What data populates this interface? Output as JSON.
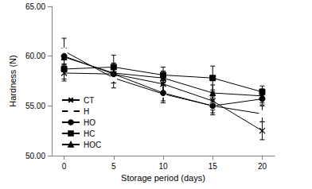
{
  "chart_data": {
    "type": "line",
    "x_label": "Storage period (days)",
    "y_label": "Hardness (N)",
    "xlim": [
      -1.25,
      21.25
    ],
    "xticks": [
      0,
      5,
      10,
      15,
      20
    ],
    "ylim": [
      50,
      65
    ],
    "yticks": [
      {
        "value": 50,
        "label": "50.00"
      },
      {
        "value": 55,
        "label": "55.00"
      },
      {
        "value": 60,
        "label": "60.00"
      },
      {
        "value": 65,
        "label": "65.00"
      }
    ],
    "grid": false,
    "legend": "lower left",
    "series": [
      {
        "name": "CT",
        "color": "#000000",
        "marker": "x",
        "line_style": "solid",
        "x": [
          0,
          5,
          10,
          15,
          20
        ],
        "values": [
          58.3,
          58.2,
          57.2,
          55.5,
          52.5
        ],
        "errors": [
          0.8,
          0.9,
          0.8,
          0.9,
          0.9
        ]
      },
      {
        "name": "H",
        "color": "#000000",
        "marker": "circle_open",
        "line_style": "solid",
        "x": [
          0,
          5,
          10,
          15,
          20
        ],
        "values": [
          60.5,
          57.8,
          56.2,
          55.0,
          54.2
        ],
        "errors": [
          1.3,
          1.0,
          0.9,
          0.9,
          0.8
        ]
      },
      {
        "name": "HO",
        "color": "#000000",
        "marker": "circle",
        "line_style": "solid",
        "x": [
          0,
          5,
          10,
          15,
          20
        ],
        "values": [
          60.0,
          58.2,
          56.3,
          55.0,
          55.7
        ],
        "errors": [
          0.8,
          0.9,
          0.8,
          0.7,
          0.6
        ]
      },
      {
        "name": "HC",
        "color": "#000000",
        "marker": "square",
        "line_style": "solid",
        "x": [
          0,
          5,
          10,
          15,
          20
        ],
        "values": [
          58.7,
          58.9,
          58.1,
          57.8,
          56.4
        ],
        "errors": [
          1.0,
          1.2,
          0.8,
          1.2,
          0.6
        ]
      },
      {
        "name": "HOC",
        "color": "#000000",
        "marker": "triangle",
        "line_style": "solid",
        "x": [
          0,
          5,
          10,
          15,
          20
        ],
        "values": [
          59.9,
          58.3,
          57.8,
          56.3,
          56.0
        ],
        "errors": [
          0.9,
          1.0,
          0.7,
          0.8,
          0.7
        ]
      }
    ]
  }
}
